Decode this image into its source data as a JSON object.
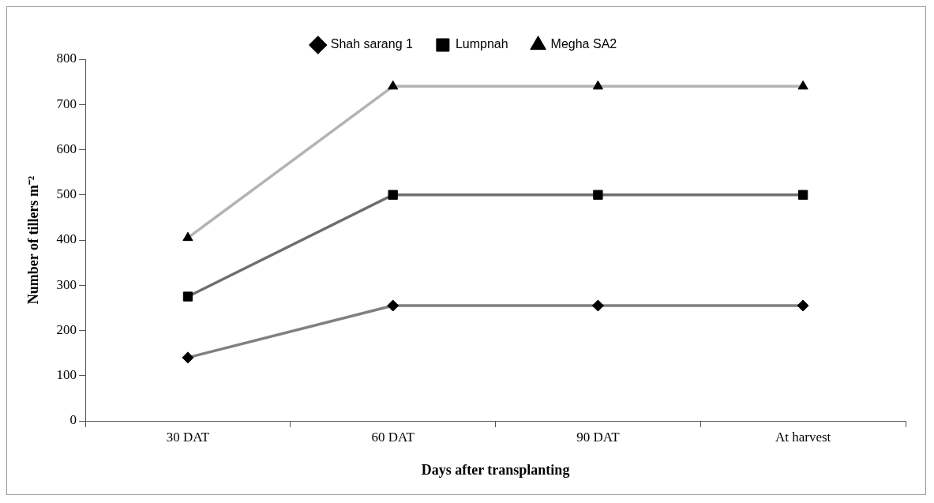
{
  "chart_data": {
    "type": "line",
    "xlabel": "Days after transplanting",
    "ylabel": "Number of tillers m⁻²",
    "categories": [
      "30 DAT",
      "60 DAT",
      "90 DAT",
      "At harvest"
    ],
    "series": [
      {
        "name": "Shah sarang 1",
        "color": "#808080",
        "marker": "diamond",
        "values": [
          140,
          255,
          255,
          255
        ]
      },
      {
        "name": "Lumpnah",
        "color": "#6e6e6e",
        "marker": "square",
        "values": [
          275,
          500,
          500,
          500
        ]
      },
      {
        "name": "Megha SA2",
        "color": "#b3b3b3",
        "marker": "triangle",
        "values": [
          405,
          740,
          740,
          740
        ]
      }
    ],
    "ylim": [
      0,
      800
    ],
    "yticks": [
      0,
      100,
      200,
      300,
      400,
      500,
      600,
      700,
      800
    ],
    "grid": false,
    "legend": "top"
  }
}
